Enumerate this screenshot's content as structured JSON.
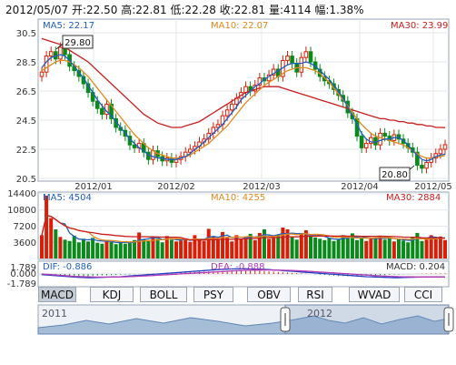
{
  "header": {
    "date": "2012/05/07",
    "open_label": "开:",
    "open": "22.50",
    "high_label": "高:",
    "high": "22.81",
    "low_label": "低:",
    "low": "22.28",
    "close_label": "收:",
    "close": "22.81",
    "vol_label": "量:",
    "vol": "4114",
    "chg_label": "幅:",
    "chg": "1.38%"
  },
  "price_panel": {
    "ma5": "MA5: 22.17",
    "ma10": "MA10: 22.07",
    "ma30": "MA30: 23.99",
    "high_marker": "29.80",
    "low_marker": "20.80",
    "y_ticks": [
      "30.5",
      "28.5",
      "26.5",
      "24.5",
      "22.5",
      "20.5"
    ],
    "x_ticks": [
      "2012/01",
      "2012/02",
      "2012/03",
      "2012/04",
      "2012/05"
    ]
  },
  "volume_panel": {
    "ma5": "MA5: 4504",
    "ma10": "MA10: 4255",
    "ma30": "MA30: 2884",
    "y_ticks": [
      "14400",
      "10800",
      "7200",
      "3600"
    ]
  },
  "macd_panel": {
    "dif": "DIF: -0.886",
    "dea": "DEA: -0.888",
    "macd": "MACD: 0.204",
    "y_ticks": [
      "1.789",
      "0.000",
      "-1.789"
    ]
  },
  "tabs": [
    "MACD",
    "KDJ",
    "BOLL",
    "PSY",
    "OBV",
    "RSI",
    "WVAD",
    "CCI"
  ],
  "navigator": {
    "left_year": "2011",
    "right_year": "2012"
  },
  "colors": {
    "up": "#d81e06",
    "down": "#0a8a1a",
    "ma5": "#1f5fbf",
    "ma10": "#e08a1e",
    "ma30": "#c81e1e",
    "panel_border": "#9aa6b5"
  },
  "chart_data": [
    {
      "type": "candlestick",
      "title": "",
      "period": "2012/01 - 2012/05",
      "y_range": [
        20.5,
        30.5
      ],
      "close": [
        27.8,
        28.9,
        29.2,
        28.7,
        29.5,
        29.0,
        28.2,
        27.9,
        27.5,
        27.0,
        26.4,
        25.8,
        25.3,
        24.9,
        25.6,
        24.6,
        24.0,
        23.8,
        23.4,
        22.8,
        22.6,
        22.9,
        22.3,
        21.8,
        22.4,
        22.0,
        21.7,
        21.9,
        21.6,
        21.8,
        22.0,
        22.3,
        22.5,
        22.7,
        23.0,
        23.2,
        23.6,
        24.0,
        24.2,
        24.8,
        25.2,
        25.6,
        26.0,
        26.4,
        26.8,
        26.5,
        26.9,
        27.4,
        27.2,
        27.6,
        28.0,
        27.5,
        28.6,
        28.9,
        28.4,
        27.8,
        28.8,
        29.2,
        28.5,
        28.0,
        27.5,
        27.2,
        27.0,
        26.6,
        26.2,
        25.8,
        25.0,
        24.6,
        23.4,
        22.6,
        22.9,
        23.3,
        22.8,
        23.6,
        23.4,
        23.1,
        23.5,
        23.2,
        22.9,
        22.6,
        22.3,
        21.4,
        21.2,
        21.6,
        21.9,
        22.2,
        22.5,
        22.81
      ],
      "ma5": [
        28.1,
        28.5,
        28.8,
        28.9,
        29.0,
        28.9,
        28.6,
        28.2,
        27.8,
        27.4,
        26.9,
        26.4,
        25.9,
        25.5,
        25.1,
        24.8,
        24.4,
        24.0,
        23.6,
        23.2,
        22.9,
        22.6,
        22.4,
        22.1,
        22.0,
        21.9,
        21.9,
        21.8,
        21.8,
        21.8,
        21.9,
        22.0,
        22.2,
        22.5,
        22.7,
        23.0,
        23.3,
        23.6,
        23.9,
        24.2,
        24.6,
        25.0,
        25.4,
        25.9,
        26.2,
        26.5,
        26.8,
        27.0,
        27.3,
        27.5,
        27.7,
        27.9,
        28.1,
        28.3,
        28.4,
        28.4,
        28.4,
        28.5,
        28.4,
        28.2,
        27.9,
        27.6,
        27.3,
        26.9,
        26.5,
        26.0,
        25.4,
        24.8,
        24.2,
        23.6,
        23.2,
        23.0,
        23.0,
        23.1,
        23.2,
        23.2,
        23.3,
        23.3,
        23.1,
        22.8,
        22.4,
        22.1,
        21.8,
        21.7,
        21.8,
        22.0,
        22.1,
        22.17
      ],
      "ma10": [
        27.9,
        28.1,
        28.3,
        28.5,
        28.6,
        28.6,
        28.5,
        28.3,
        28.1,
        27.8,
        27.5,
        27.1,
        26.7,
        26.3,
        25.9,
        25.5,
        25.1,
        24.7,
        24.3,
        23.9,
        23.5,
        23.2,
        22.9,
        22.6,
        22.4,
        22.2,
        22.1,
        22.0,
        21.9,
        21.9,
        21.9,
        22.0,
        22.1,
        22.3,
        22.5,
        22.7,
        22.9,
        23.2,
        23.5,
        23.8,
        24.1,
        24.5,
        24.9,
        25.3,
        25.7,
        26.0,
        26.3,
        26.6,
        26.9,
        27.1,
        27.3,
        27.5,
        27.7,
        27.9,
        28.0,
        28.1,
        28.1,
        28.1,
        28.0,
        27.9,
        27.7,
        27.4,
        27.1,
        26.7,
        26.3,
        25.9,
        25.5,
        25.0,
        24.6,
        24.2,
        23.9,
        23.6,
        23.4,
        23.3,
        23.2,
        23.1,
        23.0,
        22.9,
        22.8,
        22.6,
        22.4,
        22.2,
        22.0,
        21.9,
        21.9,
        22.0,
        22.0,
        22.07
      ],
      "ma30": [
        30.1,
        30.0,
        29.9,
        29.8,
        29.7,
        29.5,
        29.3,
        29.1,
        28.9,
        28.7,
        28.5,
        28.2,
        27.9,
        27.6,
        27.3,
        27.0,
        26.7,
        26.4,
        26.1,
        25.8,
        25.5,
        25.2,
        24.9,
        24.7,
        24.5,
        24.3,
        24.2,
        24.1,
        24.0,
        24.0,
        24.0,
        24.1,
        24.2,
        24.3,
        24.4,
        24.6,
        24.8,
        25.0,
        25.2,
        25.4,
        25.6,
        25.8,
        26.0,
        26.2,
        26.4,
        26.5,
        26.6,
        26.7,
        26.8,
        26.8,
        26.8,
        26.8,
        26.7,
        26.6,
        26.5,
        26.4,
        26.3,
        26.2,
        26.1,
        26.0,
        25.9,
        25.8,
        25.7,
        25.6,
        25.5,
        25.4,
        25.3,
        25.2,
        25.1,
        25.0,
        24.9,
        24.8,
        24.7,
        24.6,
        24.6,
        24.5,
        24.5,
        24.4,
        24.4,
        24.3,
        24.3,
        24.2,
        24.2,
        24.1,
        24.1,
        24.0,
        24.0,
        23.99
      ]
    },
    {
      "type": "bar",
      "title": "",
      "y_range": [
        0,
        14400
      ],
      "values": [
        5200,
        14000,
        9000,
        6500,
        4800,
        4200,
        3900,
        5100,
        3600,
        4400,
        3800,
        4600,
        3500,
        3300,
        4100,
        3700,
        3200,
        3600,
        3300,
        3800,
        4100,
        5800,
        4300,
        3900,
        4900,
        4400,
        3600,
        5000,
        4200,
        3800,
        4000,
        4500,
        3700,
        5200,
        4100,
        3900,
        6600,
        4800,
        4200,
        5900,
        4600,
        3800,
        5200,
        4300,
        4900,
        5500,
        4100,
        5700,
        6500,
        4400,
        4700,
        5300,
        6900,
        6500,
        4900,
        4200,
        5400,
        6300,
        5000,
        4700,
        4400,
        4100,
        4600,
        3900,
        4300,
        5200,
        4800,
        5600,
        4100,
        4700,
        3900,
        4400,
        4700,
        5100,
        4200,
        4500,
        3800,
        4300,
        4000,
        3600,
        4800,
        5700,
        3900,
        4500,
        5200,
        4300,
        4900,
        4114
      ]
    },
    {
      "type": "bar",
      "title": "",
      "y_range": [
        -1.789,
        1.789
      ],
      "macd_hist": [
        -0.3,
        -0.4,
        -0.5,
        -0.6,
        -0.7,
        -0.75,
        -0.8,
        -0.85,
        -0.8,
        -0.75,
        -0.7,
        -0.6,
        -0.5,
        -0.45,
        -0.4,
        -0.35,
        -0.3,
        -0.25,
        -0.2,
        -0.15,
        -0.1,
        -0.05,
        0.0,
        0.05,
        0.1,
        0.15,
        0.2,
        0.3,
        0.35,
        0.4,
        0.45,
        0.5,
        0.55,
        0.6,
        0.65,
        0.7,
        0.75,
        0.8,
        0.85,
        0.9,
        0.95,
        1.0,
        1.05,
        1.1,
        1.1,
        1.05,
        1.0,
        0.95,
        0.9,
        0.8,
        0.7,
        0.6,
        0.5,
        0.4,
        0.3,
        0.25,
        0.2,
        0.1,
        0.0,
        -0.1,
        -0.2,
        -0.3,
        -0.4,
        -0.5,
        -0.6,
        -0.65,
        -0.7,
        -0.7,
        -0.65,
        -0.6,
        -0.5,
        -0.45,
        -0.4,
        -0.35,
        -0.3,
        -0.25,
        -0.2,
        -0.15,
        -0.1,
        -0.05,
        0.0,
        0.05,
        0.1,
        0.12,
        0.15,
        0.18,
        0.2,
        0.204
      ],
      "dif": [
        -0.2,
        -0.3,
        -0.4,
        -0.5,
        -0.6,
        -0.7,
        -0.8,
        -0.9,
        -1.0,
        -1.05,
        -1.1,
        -1.1,
        -1.05,
        -1.0,
        -0.95,
        -0.9,
        -0.85,
        -0.8,
        -0.7,
        -0.6,
        -0.5,
        -0.4,
        -0.3,
        -0.2,
        -0.1,
        0.0,
        0.1,
        0.2,
        0.3,
        0.4,
        0.5,
        0.6,
        0.7,
        0.8,
        0.9,
        1.0,
        1.1,
        1.2,
        1.3,
        1.4,
        1.45,
        1.5,
        1.52,
        1.55,
        1.55,
        1.5,
        1.45,
        1.4,
        1.35,
        1.3,
        1.2,
        1.1,
        1.0,
        0.9,
        0.8,
        0.7,
        0.6,
        0.5,
        0.4,
        0.3,
        0.2,
        0.1,
        0.0,
        -0.1,
        -0.2,
        -0.3,
        -0.4,
        -0.5,
        -0.6,
        -0.7,
        -0.8,
        -0.85,
        -0.9,
        -0.95,
        -1.0,
        -1.05,
        -1.1,
        -1.1,
        -1.05,
        -1.0,
        -0.98,
        -0.95,
        -0.93,
        -0.92,
        -0.9,
        -0.89,
        -0.887,
        -0.886
      ],
      "dea": [
        0.0,
        -0.1,
        -0.2,
        -0.3,
        -0.4,
        -0.5,
        -0.6,
        -0.7,
        -0.75,
        -0.8,
        -0.85,
        -0.9,
        -0.92,
        -0.93,
        -0.93,
        -0.92,
        -0.9,
        -0.87,
        -0.83,
        -0.78,
        -0.72,
        -0.66,
        -0.6,
        -0.53,
        -0.46,
        -0.38,
        -0.3,
        -0.22,
        -0.14,
        -0.06,
        0.02,
        0.1,
        0.18,
        0.26,
        0.34,
        0.42,
        0.5,
        0.58,
        0.66,
        0.74,
        0.82,
        0.9,
        0.97,
        1.03,
        1.08,
        1.12,
        1.15,
        1.17,
        1.18,
        1.18,
        1.17,
        1.15,
        1.12,
        1.08,
        1.03,
        0.97,
        0.9,
        0.83,
        0.75,
        0.67,
        0.58,
        0.5,
        0.41,
        0.32,
        0.23,
        0.14,
        0.05,
        -0.04,
        -0.13,
        -0.22,
        -0.31,
        -0.4,
        -0.48,
        -0.56,
        -0.63,
        -0.7,
        -0.76,
        -0.81,
        -0.85,
        -0.87,
        -0.88,
        -0.885,
        -0.888,
        -0.89,
        -0.889,
        -0.889,
        -0.888,
        -0.888
      ]
    }
  ]
}
